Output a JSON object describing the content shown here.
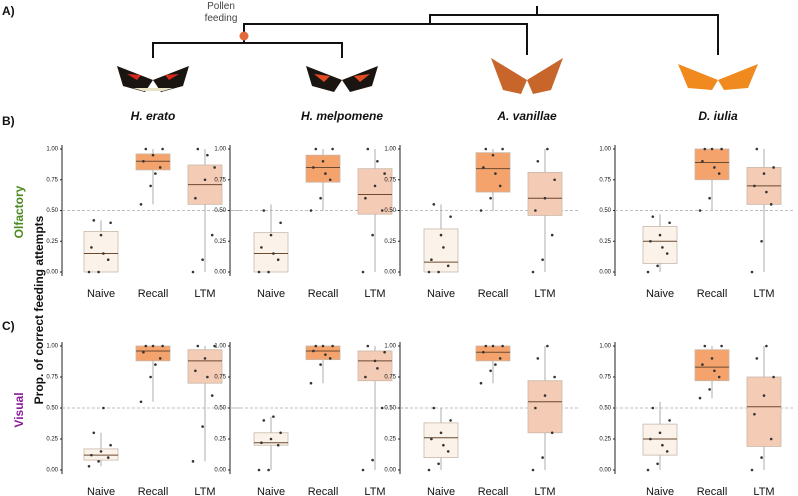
{
  "figure": {
    "panel_a": "A)",
    "panel_b": "B)",
    "panel_c": "C)",
    "pollen": "Pollen feeding",
    "species": [
      "H. erato",
      "H. melpomene",
      "A. vanillae",
      "D. iulia"
    ],
    "ylabel": "Prop. of correct feeding attempts",
    "rows": [
      "Olfactory",
      "Visual"
    ]
  },
  "chart_data": [
    {
      "type": "box",
      "categories": [
        "Naive",
        "Recall",
        "LTM"
      ],
      "colors": [
        "#fbf3ea",
        "#f5a36c",
        "#f4cbb5"
      ],
      "ylim": [
        0,
        1
      ],
      "yticks": [
        {
          "value": 0,
          "label": "0.00"
        },
        {
          "value": 0.25,
          "label": "0.25"
        },
        {
          "value": 0.5,
          "label": "0.50"
        },
        {
          "value": 0.75,
          "label": "0.75"
        },
        {
          "value": 1,
          "label": "1.00"
        }
      ],
      "reference_line": 0.5,
      "boxes": [
        {
          "min": 0,
          "q1": 0,
          "median": 0.15,
          "q3": 0.33,
          "max": 0.42,
          "points": [
            0,
            0,
            0.1,
            0.2,
            0.3,
            0.4,
            0.42,
            0.15
          ]
        },
        {
          "min": 0.55,
          "q1": 0.83,
          "median": 0.9,
          "q3": 0.96,
          "max": 1,
          "points": [
            0.55,
            0.7,
            0.85,
            0.9,
            0.95,
            1,
            1,
            0.8
          ]
        },
        {
          "min": 0,
          "q1": 0.55,
          "median": 0.71,
          "q3": 0.87,
          "max": 1,
          "points": [
            0,
            0.1,
            0.3,
            0.6,
            0.75,
            0.85,
            1,
            0.95
          ]
        }
      ]
    },
    {
      "type": "box",
      "categories": [
        "Naive",
        "Recall",
        "LTM"
      ],
      "colors": [
        "#fbf3ea",
        "#f5a36c",
        "#f4cbb5"
      ],
      "ylim": [
        0,
        1
      ],
      "yticks": [
        {
          "value": 0,
          "label": "0.00"
        },
        {
          "value": 0.25,
          "label": "0.25"
        },
        {
          "value": 0.5,
          "label": "0.50"
        },
        {
          "value": 0.75,
          "label": "0.75"
        },
        {
          "value": 1,
          "label": "1.00"
        }
      ],
      "reference_line": 0.5,
      "boxes": [
        {
          "min": 0,
          "q1": 0,
          "median": 0.15,
          "q3": 0.32,
          "max": 0.55,
          "points": [
            0,
            0,
            0.1,
            0.2,
            0.3,
            0.4,
            0.5,
            0.15
          ]
        },
        {
          "min": 0.5,
          "q1": 0.73,
          "median": 0.85,
          "q3": 0.95,
          "max": 1,
          "points": [
            0.5,
            0.6,
            0.75,
            0.85,
            0.9,
            1,
            1,
            0.8
          ]
        },
        {
          "min": 0,
          "q1": 0.47,
          "median": 0.63,
          "q3": 0.84,
          "max": 1,
          "points": [
            0,
            0.3,
            0.5,
            0.6,
            0.7,
            0.8,
            1,
            0.9
          ]
        }
      ]
    },
    {
      "type": "box",
      "categories": [
        "Naive",
        "Recall",
        "LTM"
      ],
      "colors": [
        "#fbf3ea",
        "#f5a36c",
        "#f4cbb5"
      ],
      "ylim": [
        0,
        1
      ],
      "yticks": [
        {
          "value": 0,
          "label": "0.00"
        },
        {
          "value": 0.25,
          "label": "0.25"
        },
        {
          "value": 0.5,
          "label": "0.50"
        },
        {
          "value": 0.75,
          "label": "0.75"
        },
        {
          "value": 1,
          "label": "1.00"
        }
      ],
      "reference_line": 0.5,
      "boxes": [
        {
          "min": 0,
          "q1": 0,
          "median": 0.08,
          "q3": 0.35,
          "max": 0.55,
          "points": [
            0,
            0,
            0.05,
            0.1,
            0.3,
            0.45,
            0.55,
            0.2
          ]
        },
        {
          "min": 0.5,
          "q1": 0.65,
          "median": 0.84,
          "q3": 0.97,
          "max": 1,
          "points": [
            0.5,
            0.6,
            0.7,
            0.85,
            0.95,
            1,
            1,
            0.8
          ]
        },
        {
          "min": 0,
          "q1": 0.46,
          "median": 0.6,
          "q3": 0.81,
          "max": 1,
          "points": [
            0,
            0.1,
            0.3,
            0.5,
            0.6,
            0.75,
            0.9,
            1
          ]
        }
      ]
    },
    {
      "type": "box",
      "categories": [
        "Naive",
        "Recall",
        "LTM"
      ],
      "colors": [
        "#fbf3ea",
        "#f5a36c",
        "#f4cbb5"
      ],
      "ylim": [
        0,
        1
      ],
      "yticks": [
        {
          "value": 0,
          "label": "0.00"
        },
        {
          "value": 0.25,
          "label": "0.25"
        },
        {
          "value": 0.5,
          "label": "0.50"
        },
        {
          "value": 0.75,
          "label": "0.75"
        },
        {
          "value": 1,
          "label": "1.00"
        }
      ],
      "reference_line": 0.5,
      "boxes": [
        {
          "min": 0,
          "q1": 0.07,
          "median": 0.25,
          "q3": 0.37,
          "max": 0.47,
          "points": [
            0,
            0.05,
            0.15,
            0.25,
            0.3,
            0.4,
            0.45,
            0.2
          ]
        },
        {
          "min": 0.5,
          "q1": 0.75,
          "median": 0.89,
          "q3": 1,
          "max": 1,
          "points": [
            0.5,
            0.6,
            0.8,
            0.9,
            1,
            1,
            1,
            0.85
          ]
        },
        {
          "min": 0,
          "q1": 0.55,
          "median": 0.7,
          "q3": 0.85,
          "max": 1,
          "points": [
            0,
            0.25,
            0.55,
            0.7,
            0.8,
            0.85,
            1,
            0.65
          ]
        }
      ]
    },
    {
      "type": "box",
      "categories": [
        "Naive",
        "Recall",
        "LTM"
      ],
      "colors": [
        "#fbf3ea",
        "#f5a36c",
        "#f4cbb5"
      ],
      "ylim": [
        0,
        1
      ],
      "yticks": [
        {
          "value": 0,
          "label": "0.00"
        },
        {
          "value": 0.25,
          "label": "0.25"
        },
        {
          "value": 0.5,
          "label": "0.50"
        },
        {
          "value": 0.75,
          "label": "0.75"
        },
        {
          "value": 1,
          "label": "1.00"
        }
      ],
      "reference_line": 0.5,
      "boxes": [
        {
          "min": 0.03,
          "q1": 0.08,
          "median": 0.12,
          "q3": 0.17,
          "max": 0.3,
          "points": [
            0.03,
            0.07,
            0.1,
            0.12,
            0.15,
            0.2,
            0.3,
            0.5
          ]
        },
        {
          "min": 0.55,
          "q1": 0.88,
          "median": 0.96,
          "q3": 1,
          "max": 1,
          "points": [
            0.55,
            0.75,
            0.9,
            0.95,
            1,
            1,
            1,
            0.85
          ]
        },
        {
          "min": 0.07,
          "q1": 0.7,
          "median": 0.88,
          "q3": 0.97,
          "max": 1,
          "points": [
            0.07,
            0.35,
            0.6,
            0.8,
            0.9,
            1,
            1,
            0.75
          ]
        }
      ]
    },
    {
      "type": "box",
      "categories": [
        "Naive",
        "Recall",
        "LTM"
      ],
      "colors": [
        "#fbf3ea",
        "#f5a36c",
        "#f4cbb5"
      ],
      "ylim": [
        0,
        1
      ],
      "yticks": [
        {
          "value": 0,
          "label": "0.00"
        },
        {
          "value": 0.25,
          "label": "0.25"
        },
        {
          "value": 0.5,
          "label": "0.50"
        },
        {
          "value": 0.75,
          "label": "0.75"
        },
        {
          "value": 1,
          "label": "1.00"
        }
      ],
      "reference_line": 0.5,
      "boxes": [
        {
          "min": 0,
          "q1": 0.2,
          "median": 0.22,
          "q3": 0.3,
          "max": 0.43,
          "points": [
            0,
            0,
            0.2,
            0.22,
            0.25,
            0.3,
            0.4,
            0.43
          ]
        },
        {
          "min": 0.7,
          "q1": 0.89,
          "median": 0.96,
          "q3": 1,
          "max": 1,
          "points": [
            0.7,
            0.85,
            0.9,
            0.96,
            1,
            1,
            1,
            0.93
          ]
        },
        {
          "min": 0,
          "q1": 0.72,
          "median": 0.88,
          "q3": 0.96,
          "max": 1,
          "points": [
            0,
            0.08,
            0.5,
            0.75,
            0.88,
            0.95,
            1,
            0.82
          ]
        }
      ]
    },
    {
      "type": "box",
      "categories": [
        "Naive",
        "Recall",
        "LTM"
      ],
      "colors": [
        "#fbf3ea",
        "#f5a36c",
        "#f4cbb5"
      ],
      "ylim": [
        0,
        1
      ],
      "yticks": [
        {
          "value": 0,
          "label": "0.00"
        },
        {
          "value": 0.25,
          "label": "0.25"
        },
        {
          "value": 0.5,
          "label": "0.50"
        },
        {
          "value": 0.75,
          "label": "0.75"
        },
        {
          "value": 1,
          "label": "1.00"
        }
      ],
      "reference_line": 0.5,
      "boxes": [
        {
          "min": 0,
          "q1": 0.1,
          "median": 0.26,
          "q3": 0.38,
          "max": 0.5,
          "points": [
            0,
            0.05,
            0.15,
            0.25,
            0.3,
            0.4,
            0.5,
            0.2
          ]
        },
        {
          "min": 0.7,
          "q1": 0.88,
          "median": 0.95,
          "q3": 1,
          "max": 1,
          "points": [
            0.7,
            0.8,
            0.9,
            0.95,
            1,
            1,
            1,
            0.85
          ]
        },
        {
          "min": 0,
          "q1": 0.3,
          "median": 0.55,
          "q3": 0.72,
          "max": 1,
          "points": [
            0,
            0.1,
            0.3,
            0.5,
            0.6,
            0.75,
            0.9,
            1
          ]
        }
      ]
    },
    {
      "type": "box",
      "categories": [
        "Naive",
        "Recall",
        "LTM"
      ],
      "colors": [
        "#fbf3ea",
        "#f5a36c",
        "#f4cbb5"
      ],
      "ylim": [
        0,
        1
      ],
      "yticks": [
        {
          "value": 0,
          "label": "0.00"
        },
        {
          "value": 0.25,
          "label": "0.25"
        },
        {
          "value": 0.5,
          "label": "0.50"
        },
        {
          "value": 0.75,
          "label": "0.75"
        },
        {
          "value": 1,
          "label": "1.00"
        }
      ],
      "reference_line": 0.5,
      "boxes": [
        {
          "min": 0,
          "q1": 0.12,
          "median": 0.25,
          "q3": 0.37,
          "max": 0.55,
          "points": [
            0,
            0.05,
            0.15,
            0.25,
            0.3,
            0.4,
            0.5,
            0.2
          ]
        },
        {
          "min": 0.58,
          "q1": 0.72,
          "median": 0.83,
          "q3": 0.97,
          "max": 1,
          "points": [
            0.58,
            0.65,
            0.75,
            0.85,
            0.9,
            1,
            1,
            0.8
          ]
        },
        {
          "min": 0,
          "q1": 0.19,
          "median": 0.51,
          "q3": 0.75,
          "max": 1,
          "points": [
            0,
            0.1,
            0.25,
            0.45,
            0.6,
            0.75,
            0.9,
            1
          ]
        }
      ]
    }
  ]
}
